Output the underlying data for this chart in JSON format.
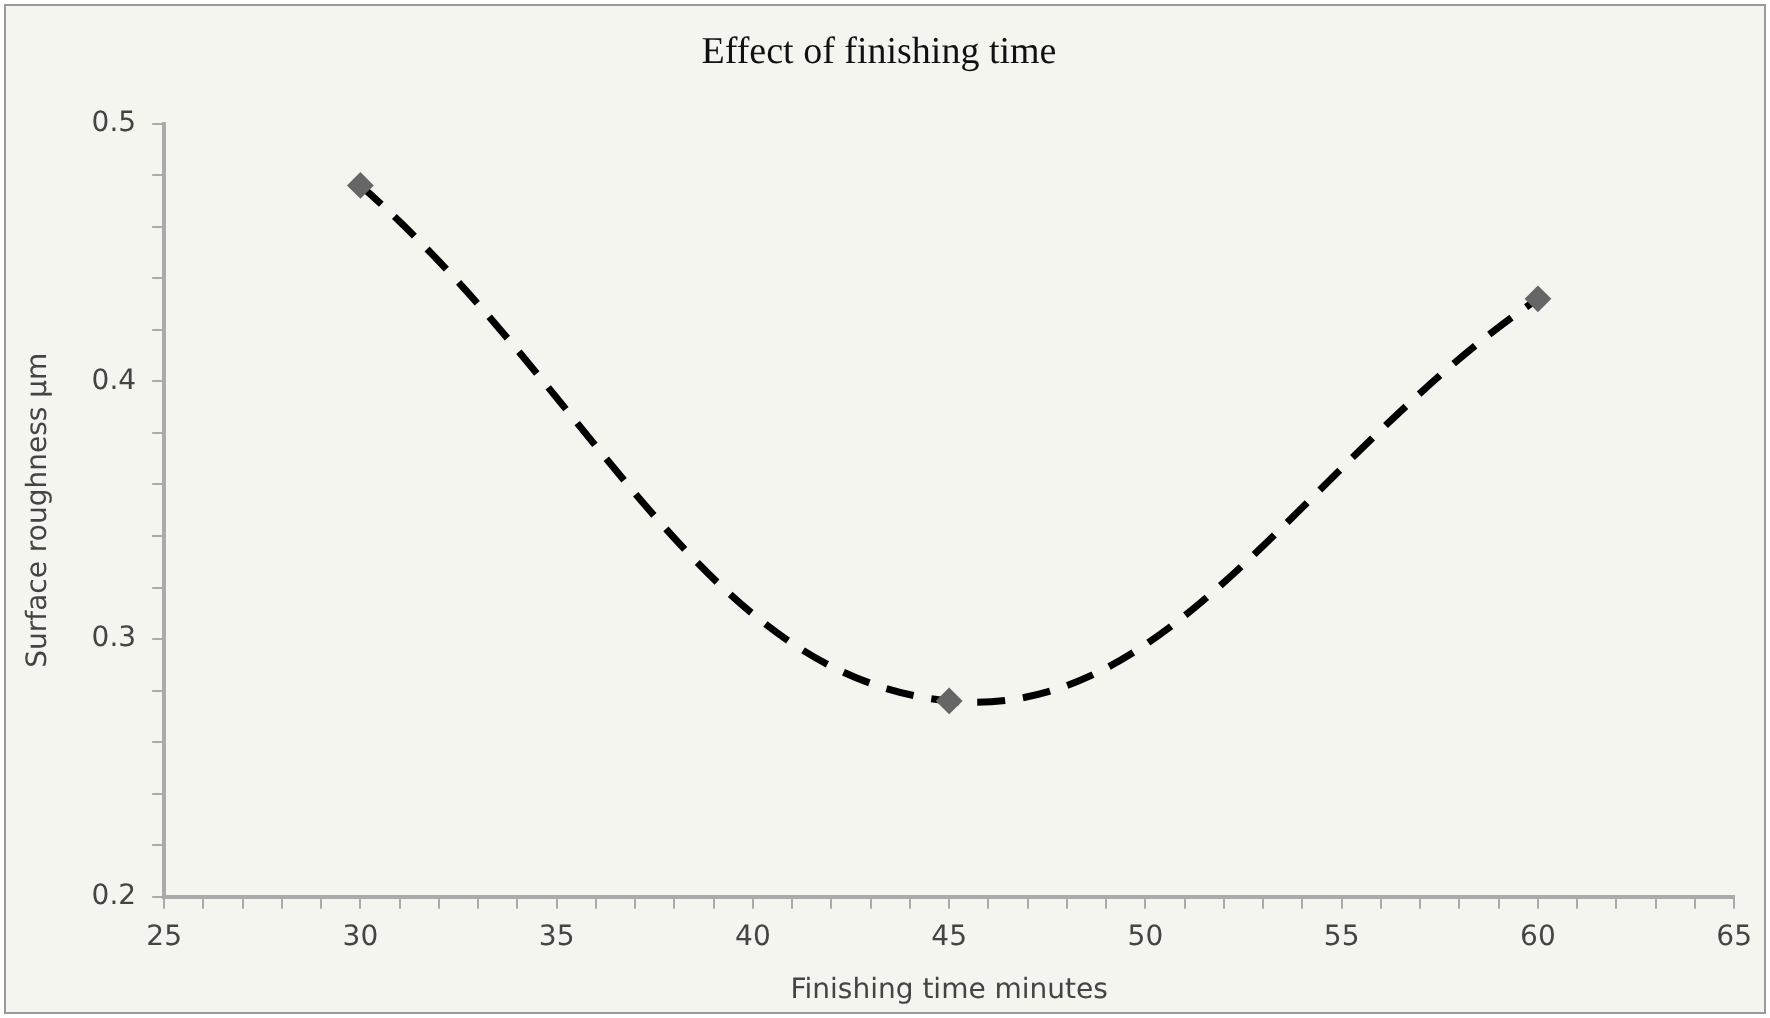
{
  "chart_data": {
    "type": "line",
    "title": "Effect of finishing time",
    "xlabel": "Finishing time minutes",
    "ylabel": "Surface roughness µm",
    "x": [
      30,
      45,
      60
    ],
    "series": [
      {
        "type": "line",
        "color": "#000000",
        "line_style": "dashed",
        "marker": "none",
        "values": [
          0.476,
          0.276,
          0.432
        ]
      },
      {
        "type": "scatter",
        "color": "#666666",
        "marker": "diamond",
        "values": [
          0.476,
          0.276,
          0.432
        ]
      }
    ],
    "xlim": [
      25,
      65
    ],
    "xticks": [
      25,
      {
        "value": 26,
        "label": null
      },
      {
        "value": 27,
        "label": null
      },
      {
        "value": 28,
        "label": null
      },
      {
        "value": 29,
        "label": null
      },
      30,
      {
        "value": 31,
        "label": null
      },
      {
        "value": 32,
        "label": null
      },
      {
        "value": 33,
        "label": null
      },
      {
        "value": 34,
        "label": null
      },
      35,
      {
        "value": 36,
        "label": null
      },
      {
        "value": 37,
        "label": null
      },
      {
        "value": 38,
        "label": null
      },
      {
        "value": 39,
        "label": null
      },
      40,
      {
        "value": 41,
        "label": null
      },
      {
        "value": 42,
        "label": null
      },
      {
        "value": 43,
        "label": null
      },
      {
        "value": 44,
        "label": null
      },
      45,
      {
        "value": 46,
        "label": null
      },
      {
        "value": 47,
        "label": null
      },
      {
        "value": 48,
        "label": null
      },
      {
        "value": 49,
        "label": null
      },
      50,
      {
        "value": 51,
        "label": null
      },
      {
        "value": 52,
        "label": null
      },
      {
        "value": 53,
        "label": null
      },
      {
        "value": 54,
        "label": null
      },
      55,
      {
        "value": 56,
        "label": null
      },
      {
        "value": 57,
        "label": null
      },
      {
        "value": 58,
        "label": null
      },
      {
        "value": 59,
        "label": null
      },
      60,
      {
        "value": 61,
        "label": null
      },
      {
        "value": 62,
        "label": null
      },
      {
        "value": 63,
        "label": null
      },
      {
        "value": 64,
        "label": null
      },
      65
    ],
    "ylim": [
      0.2,
      0.5
    ],
    "yticks": [
      {
        "value": 0.2,
        "label": "0.2"
      },
      {
        "value": 0.22,
        "label": null
      },
      {
        "value": 0.24,
        "label": null
      },
      {
        "value": 0.26,
        "label": null
      },
      {
        "value": 0.28,
        "label": null
      },
      {
        "value": 0.3,
        "label": "0.3"
      },
      {
        "value": 0.32,
        "label": null
      },
      {
        "value": 0.34,
        "label": null
      },
      {
        "value": 0.36,
        "label": null
      },
      {
        "value": 0.38,
        "label": null
      },
      {
        "value": 0.4,
        "label": "0.4"
      },
      {
        "value": 0.42,
        "label": null
      },
      {
        "value": 0.44,
        "label": null
      },
      {
        "value": 0.46,
        "label": null
      },
      {
        "value": 0.48,
        "label": null
      },
      {
        "value": 0.5,
        "label": "0.5"
      }
    ],
    "grid": false,
    "legend": false
  }
}
